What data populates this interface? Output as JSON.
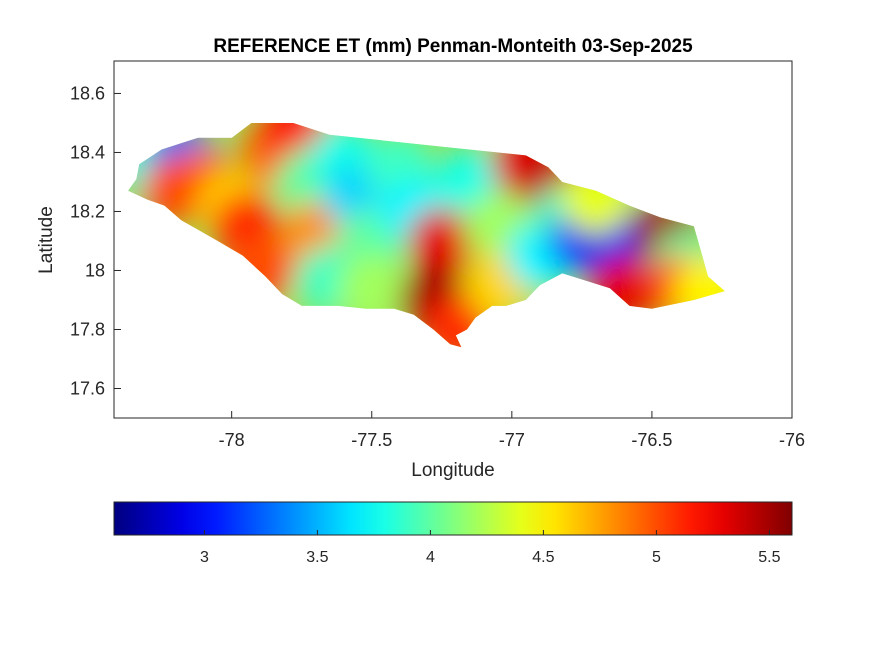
{
  "chart_data": {
    "type": "heatmap",
    "title": "REFERENCE ET (mm) Penman-Monteith 03-Sep-2025",
    "xlabel": "Longitude",
    "ylabel": "Latitude",
    "xlim": [
      -78.42,
      -76.0
    ],
    "ylim": [
      17.5,
      18.71
    ],
    "xticks": [
      -78,
      -77.5,
      -77,
      -76.5,
      -76
    ],
    "xtick_labels": [
      "-78",
      "-77.5",
      "-77",
      "-76.5",
      "-76"
    ],
    "yticks": [
      17.6,
      17.8,
      18.0,
      18.2,
      18.4,
      18.6
    ],
    "ytick_labels": [
      "17.6",
      "17.8",
      "18",
      "18.2",
      "18.4",
      "18.6"
    ],
    "colormap": "jet",
    "colorbar": {
      "orientation": "horizontal",
      "placement": "below",
      "range": [
        2.6,
        5.6
      ],
      "ticks": [
        3,
        3.5,
        4,
        4.5,
        5,
        5.5
      ],
      "tick_labels": [
        "3",
        "3.5",
        "4",
        "4.5",
        "5",
        "5.5"
      ]
    },
    "grid": false,
    "region_outline": [
      [
        -78.37,
        18.27
      ],
      [
        -78.34,
        18.31
      ],
      [
        -78.33,
        18.36
      ],
      [
        -78.25,
        18.41
      ],
      [
        -78.12,
        18.45
      ],
      [
        -78.0,
        18.45
      ],
      [
        -77.93,
        18.5
      ],
      [
        -77.78,
        18.5
      ],
      [
        -77.65,
        18.46
      ],
      [
        -77.45,
        18.44
      ],
      [
        -77.15,
        18.41
      ],
      [
        -76.95,
        18.39
      ],
      [
        -76.87,
        18.35
      ],
      [
        -76.82,
        18.3
      ],
      [
        -76.7,
        18.27
      ],
      [
        -76.58,
        18.22
      ],
      [
        -76.47,
        18.18
      ],
      [
        -76.35,
        18.15
      ],
      [
        -76.32,
        18.05
      ],
      [
        -76.3,
        17.98
      ],
      [
        -76.24,
        17.93
      ],
      [
        -76.35,
        17.9
      ],
      [
        -76.5,
        17.87
      ],
      [
        -76.58,
        17.88
      ],
      [
        -76.65,
        17.94
      ],
      [
        -76.82,
        17.99
      ],
      [
        -76.9,
        17.95
      ],
      [
        -76.95,
        17.9
      ],
      [
        -77.02,
        17.88
      ],
      [
        -77.07,
        17.88
      ],
      [
        -77.13,
        17.84
      ],
      [
        -77.16,
        17.8
      ],
      [
        -77.2,
        17.78
      ],
      [
        -77.18,
        17.74
      ],
      [
        -77.22,
        17.75
      ],
      [
        -77.28,
        17.8
      ],
      [
        -77.35,
        17.85
      ],
      [
        -77.42,
        17.87
      ],
      [
        -77.52,
        17.87
      ],
      [
        -77.62,
        17.88
      ],
      [
        -77.75,
        17.88
      ],
      [
        -77.82,
        17.92
      ],
      [
        -77.88,
        17.98
      ],
      [
        -77.96,
        18.05
      ],
      [
        -78.05,
        18.1
      ],
      [
        -78.18,
        18.17
      ],
      [
        -78.24,
        18.22
      ],
      [
        -78.3,
        18.24
      ]
    ],
    "value_field": [
      {
        "lon": -78.28,
        "lat": 18.36,
        "value": 3.8
      },
      {
        "lon": -78.18,
        "lat": 18.38,
        "value": 3.3
      },
      {
        "lon": -78.1,
        "lat": 18.3,
        "value": 4.9
      },
      {
        "lon": -78.2,
        "lat": 18.27,
        "value": 5.0
      },
      {
        "lon": -78.0,
        "lat": 18.22,
        "value": 4.6
      },
      {
        "lon": -77.95,
        "lat": 18.15,
        "value": 5.1
      },
      {
        "lon": -77.9,
        "lat": 18.0,
        "value": 5.0
      },
      {
        "lon": -77.85,
        "lat": 18.4,
        "value": 4.9
      },
      {
        "lon": -77.78,
        "lat": 18.47,
        "value": 5.2
      },
      {
        "lon": -77.72,
        "lat": 18.3,
        "value": 4.0
      },
      {
        "lon": -77.7,
        "lat": 18.12,
        "value": 4.8
      },
      {
        "lon": -77.65,
        "lat": 17.97,
        "value": 3.9
      },
      {
        "lon": -77.6,
        "lat": 18.38,
        "value": 3.8
      },
      {
        "lon": -77.55,
        "lat": 18.25,
        "value": 3.6
      },
      {
        "lon": -77.5,
        "lat": 18.1,
        "value": 4.0
      },
      {
        "lon": -77.5,
        "lat": 17.94,
        "value": 4.2
      },
      {
        "lon": -77.4,
        "lat": 18.35,
        "value": 3.9
      },
      {
        "lon": -77.35,
        "lat": 18.2,
        "value": 3.7
      },
      {
        "lon": -77.25,
        "lat": 18.1,
        "value": 5.3
      },
      {
        "lon": -77.28,
        "lat": 17.9,
        "value": 5.5
      },
      {
        "lon": -77.2,
        "lat": 17.8,
        "value": 5.1
      },
      {
        "lon": -77.15,
        "lat": 18.3,
        "value": 3.8
      },
      {
        "lon": -77.05,
        "lat": 18.15,
        "value": 4.2
      },
      {
        "lon": -77.05,
        "lat": 17.95,
        "value": 4.6
      },
      {
        "lon": -76.95,
        "lat": 18.36,
        "value": 5.3
      },
      {
        "lon": -76.9,
        "lat": 18.05,
        "value": 3.7
      },
      {
        "lon": -76.85,
        "lat": 18.3,
        "value": 5.4
      },
      {
        "lon": -76.8,
        "lat": 18.18,
        "value": 3.9
      },
      {
        "lon": -76.75,
        "lat": 18.1,
        "value": 3.2
      },
      {
        "lon": -76.65,
        "lat": 18.12,
        "value": 2.9
      },
      {
        "lon": -76.55,
        "lat": 18.08,
        "value": 3.1
      },
      {
        "lon": -76.7,
        "lat": 18.24,
        "value": 4.4
      },
      {
        "lon": -76.6,
        "lat": 17.93,
        "value": 5.3
      },
      {
        "lon": -76.45,
        "lat": 18.12,
        "value": 5.5
      },
      {
        "lon": -76.38,
        "lat": 18.02,
        "value": 4.0
      },
      {
        "lon": -76.4,
        "lat": 17.94,
        "value": 5.0
      },
      {
        "lon": -76.3,
        "lat": 17.93,
        "value": 4.5
      }
    ]
  }
}
